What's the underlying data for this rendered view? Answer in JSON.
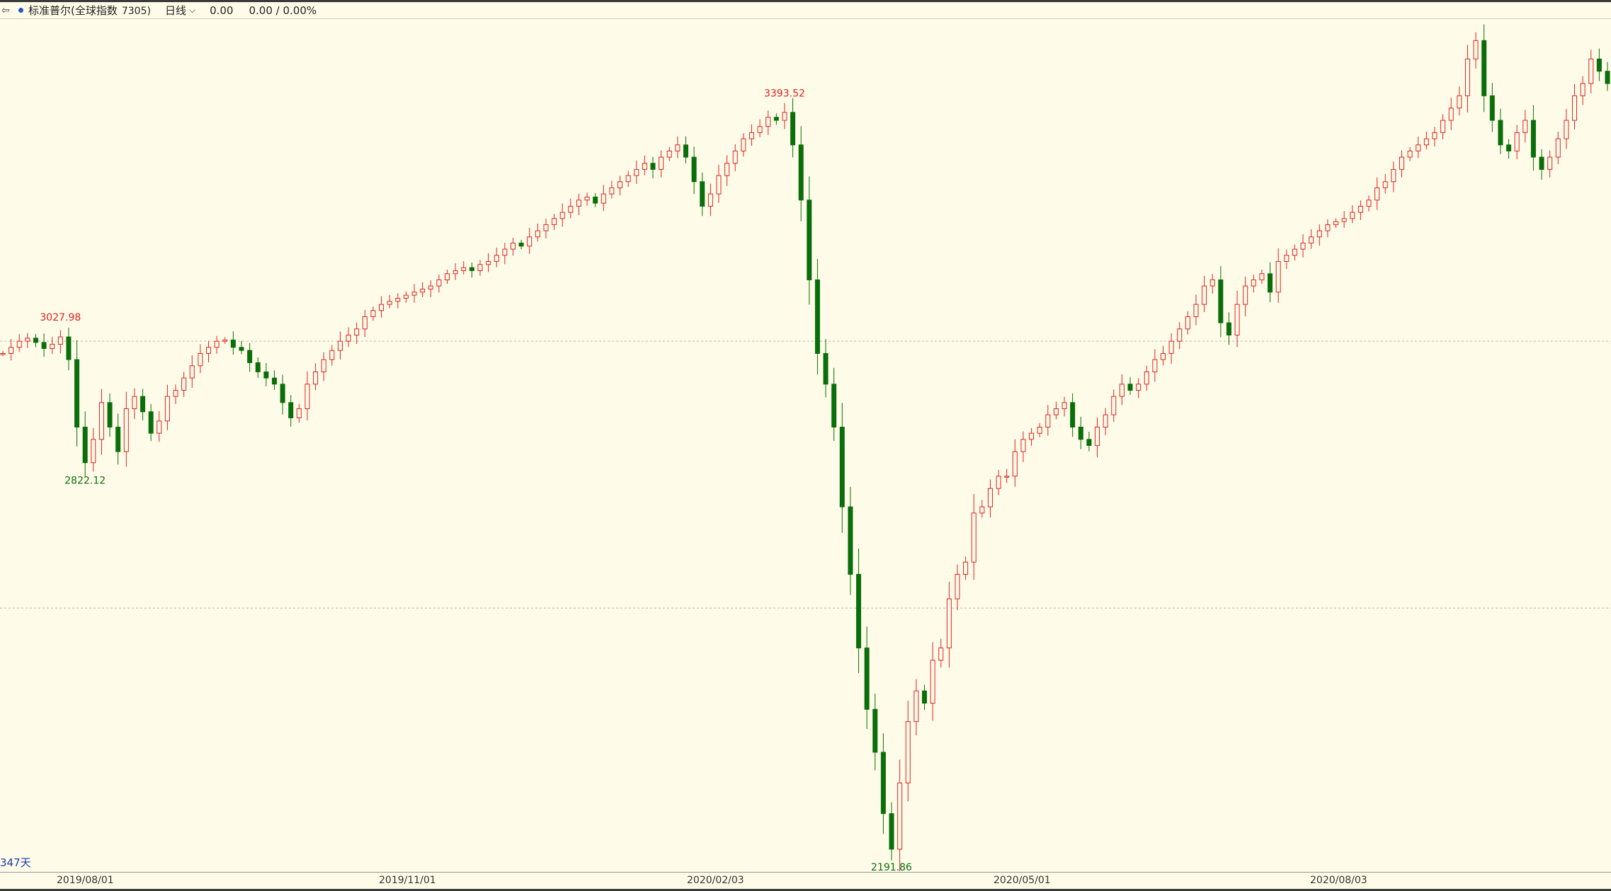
{
  "header": {
    "title": "标准普尔(全球指数",
    "code": "7305)",
    "period": "日线",
    "price": "0.00",
    "change": "0.00 / 0.00%"
  },
  "colors": {
    "up": "#e02020",
    "down": "#0a6e0a",
    "background": "#fefce8"
  },
  "day_count_label": "347天",
  "chart_data": {
    "type": "candlestick",
    "x_ticks": [
      "2019/08/01",
      "2019/11/01",
      "2020/02/03",
      "2020/05/01",
      "2020/08/03"
    ],
    "ylim": [
      2155,
      3545
    ],
    "reference_lines": [
      3020,
      2585
    ],
    "annotations": [
      {
        "label": "3027.98",
        "value": 3027.98,
        "kind": "high"
      },
      {
        "label": "2822.12",
        "value": 2822.12,
        "kind": "low"
      },
      {
        "label": "3393.52",
        "value": 3393.52,
        "kind": "high"
      },
      {
        "label": "2191.86",
        "value": 2191.86,
        "kind": "low"
      }
    ],
    "closes": [
      3000,
      3010,
      3020,
      3025,
      3018,
      3008,
      3015,
      3027,
      2990,
      2880,
      2822,
      2860,
      2920,
      2880,
      2840,
      2910,
      2930,
      2905,
      2870,
      2890,
      2930,
      2940,
      2960,
      2980,
      3000,
      3010,
      3020,
      3022,
      3010,
      3005,
      2985,
      2970,
      2960,
      2950,
      2920,
      2895,
      2910,
      2950,
      2970,
      2990,
      3005,
      3020,
      3030,
      3040,
      3060,
      3070,
      3080,
      3085,
      3090,
      3095,
      3100,
      3105,
      3110,
      3120,
      3130,
      3135,
      3140,
      3135,
      3145,
      3150,
      3160,
      3170,
      3180,
      3175,
      3190,
      3200,
      3210,
      3220,
      3230,
      3240,
      3250,
      3255,
      3245,
      3260,
      3270,
      3280,
      3290,
      3300,
      3310,
      3300,
      3320,
      3330,
      3340,
      3320,
      3280,
      3240,
      3260,
      3290,
      3310,
      3330,
      3350,
      3360,
      3370,
      3385,
      3380,
      3393,
      3340,
      3250,
      3120,
      3000,
      2950,
      2880,
      2750,
      2640,
      2520,
      2420,
      2350,
      2250,
      2192,
      2300,
      2400,
      2450,
      2430,
      2500,
      2520,
      2600,
      2640,
      2660,
      2740,
      2750,
      2780,
      2800,
      2800,
      2840,
      2860,
      2870,
      2880,
      2900,
      2910,
      2920,
      2880,
      2860,
      2850,
      2880,
      2900,
      2930,
      2950,
      2940,
      2950,
      2970,
      2990,
      3000,
      3020,
      3040,
      3060,
      3080,
      3110,
      3120,
      3050,
      3030,
      3080,
      3110,
      3120,
      3130,
      3100,
      3150,
      3160,
      3170,
      3180,
      3190,
      3200,
      3210,
      3215,
      3220,
      3230,
      3240,
      3250,
      3270,
      3280,
      3300,
      3320,
      3330,
      3340,
      3350,
      3360,
      3380,
      3400,
      3420,
      3480,
      3510,
      3420,
      3380,
      3340,
      3330,
      3360,
      3380,
      3320,
      3300,
      3320,
      3350,
      3380,
      3420,
      3440,
      3480,
      3460,
      3440
    ]
  }
}
